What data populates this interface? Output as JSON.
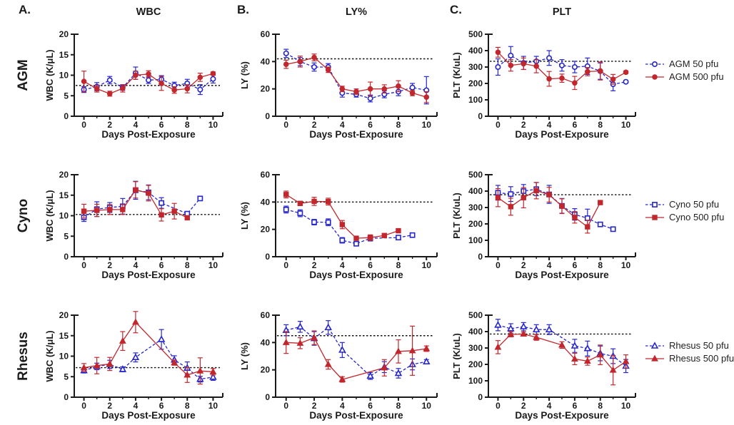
{
  "figure": {
    "xlabel": "Days Post-Exposure",
    "xticks": [
      0,
      2,
      4,
      6,
      8,
      10
    ],
    "xminor": [
      1,
      3,
      5,
      7,
      9
    ],
    "xlim": [
      -0.75,
      10.75
    ],
    "colors": {
      "dose50": "#2525cc",
      "dose500": "#c1272d",
      "baseline": "#111111",
      "text": "#1a1a1a",
      "axis": "#1a1a1a"
    },
    "panels": [
      {
        "letter": "A.",
        "title": "WBC"
      },
      {
        "letter": "B.",
        "title": "LY%"
      },
      {
        "letter": "C.",
        "title": "PLT"
      }
    ],
    "rows": [
      "AGM",
      "Cyno",
      "Rhesus"
    ]
  },
  "chart_data": [
    {
      "id": "agm-wbc",
      "type": "line",
      "row": "AGM",
      "col": "WBC",
      "panel_letter": "A.",
      "title": "WBC",
      "row_label": "AGM",
      "ylabel": "WBC (K/μL)",
      "ylim": [
        0,
        20
      ],
      "yticks": [
        0,
        5,
        10,
        15,
        20
      ],
      "baseline": 7.5,
      "legend_position": "none",
      "series": [
        {
          "name": "AGM 50 pfu",
          "marker": "circle",
          "fill": "open",
          "color": "dose50",
          "dashed": true,
          "x": [
            0,
            1,
            2,
            3,
            4,
            5,
            6,
            7,
            8,
            9,
            10
          ],
          "y": [
            6.5,
            7.2,
            8.8,
            7.0,
            10.5,
            8.8,
            9.0,
            7.5,
            8.0,
            6.5,
            9.1
          ],
          "err": [
            0.7,
            1.0,
            0.9,
            0.7,
            1.5,
            0.8,
            0.9,
            0.8,
            1.0,
            1.2,
            1.0
          ]
        },
        {
          "name": "AGM 500 pfu",
          "marker": "circle",
          "fill": "solid",
          "color": "dose500",
          "dashed": false,
          "x": [
            0,
            1,
            2,
            3,
            4,
            5,
            6,
            7,
            8,
            9,
            10
          ],
          "y": [
            8.5,
            6.7,
            5.5,
            6.8,
            10.0,
            10.3,
            8.0,
            6.4,
            6.7,
            9.5,
            10.4
          ],
          "err": [
            2.5,
            0.8,
            0.6,
            0.9,
            1.0,
            0.8,
            1.7,
            0.8,
            1.0,
            1.0,
            0.4
          ]
        }
      ]
    },
    {
      "id": "agm-ly",
      "type": "line",
      "row": "AGM",
      "col": "LY%",
      "panel_letter": "B.",
      "title": "LY%",
      "ylabel": "LY (%)",
      "ylim": [
        0,
        60
      ],
      "yticks": [
        0,
        20,
        40,
        60
      ],
      "baseline": 42,
      "legend_position": "none",
      "series": [
        {
          "name": "AGM 50 pfu",
          "marker": "circle",
          "fill": "open",
          "color": "dose50",
          "dashed": true,
          "x": [
            0,
            1,
            2,
            3,
            4,
            5,
            6,
            7,
            8,
            9,
            10
          ],
          "y": [
            46,
            40,
            36,
            36,
            17,
            16,
            13,
            16,
            18,
            21,
            19
          ],
          "err": [
            3,
            3,
            3,
            2.5,
            3,
            2,
            2.5,
            2.5,
            3,
            3,
            10
          ]
        },
        {
          "name": "AGM 500 pfu",
          "marker": "circle",
          "fill": "solid",
          "color": "dose500",
          "dashed": false,
          "x": [
            0,
            1,
            2,
            3,
            4,
            5,
            6,
            7,
            8,
            9,
            10
          ],
          "y": [
            38,
            40,
            43,
            34,
            20,
            18,
            20,
            20,
            22,
            17,
            14
          ],
          "err": [
            3,
            4,
            2.5,
            2,
            2,
            2,
            5,
            3,
            4,
            2,
            4
          ]
        }
      ]
    },
    {
      "id": "agm-plt",
      "type": "line",
      "row": "AGM",
      "col": "PLT",
      "panel_letter": "C.",
      "title": "PLT",
      "ylabel": "PLT (K/uL)",
      "ylim": [
        0,
        500
      ],
      "yticks": [
        0,
        100,
        200,
        300,
        400,
        500
      ],
      "baseline": 335,
      "legend_position": "right",
      "series": [
        {
          "name": "AGM 50 pfu",
          "marker": "circle",
          "fill": "open",
          "color": "dose50",
          "dashed": true,
          "x": [
            0,
            1,
            2,
            3,
            4,
            5,
            6,
            7,
            8,
            9,
            10
          ],
          "y": [
            300,
            370,
            325,
            335,
            355,
            310,
            300,
            305,
            275,
            195,
            210
          ],
          "err": [
            50,
            55,
            40,
            30,
            45,
            35,
            35,
            50,
            50,
            40,
            8
          ]
        },
        {
          "name": "AGM 500 pfu",
          "marker": "circle",
          "fill": "solid",
          "color": "dose500",
          "dashed": false,
          "x": [
            0,
            1,
            2,
            3,
            4,
            5,
            6,
            7,
            8,
            9,
            10
          ],
          "y": [
            390,
            310,
            320,
            305,
            228,
            232,
            203,
            272,
            276,
            225,
            268
          ],
          "err": [
            30,
            35,
            35,
            40,
            45,
            25,
            40,
            25,
            55,
            30,
            8
          ]
        }
      ]
    },
    {
      "id": "cyno-wbc",
      "type": "line",
      "row": "Cyno",
      "col": "WBC",
      "row_label": "Cyno",
      "ylabel": "WBC (K/μL)",
      "ylim": [
        0,
        20
      ],
      "yticks": [
        0,
        5,
        10,
        15,
        20
      ],
      "baseline": 10.3,
      "legend_position": "none",
      "series": [
        {
          "name": "Cyno 50 pfu",
          "marker": "square",
          "fill": "open",
          "color": "dose50",
          "dashed": true,
          "x": [
            0,
            1,
            2,
            3,
            4,
            5,
            6,
            8,
            9
          ],
          "y": [
            9.6,
            11.6,
            12.0,
            12.3,
            16.2,
            15.7,
            13.1,
            10.5,
            14.2
          ],
          "err": [
            1.0,
            1.8,
            1.2,
            1.9,
            2.2,
            1.8,
            1.3,
            0.4,
            0.3
          ]
        },
        {
          "name": "Cyno 500 pfu",
          "marker": "square",
          "fill": "solid",
          "color": "dose500",
          "dashed": false,
          "x": [
            0,
            1,
            2,
            3,
            4,
            5,
            6,
            7,
            8
          ],
          "y": [
            11.1,
            11.3,
            11.5,
            11.5,
            16.3,
            15.5,
            10.2,
            11.1,
            9.5
          ],
          "err": [
            1.7,
            1.5,
            1.2,
            1.2,
            2.0,
            1.9,
            1.5,
            1.9,
            0.3
          ]
        }
      ]
    },
    {
      "id": "cyno-ly",
      "type": "line",
      "row": "Cyno",
      "col": "LY%",
      "ylabel": "LY (%)",
      "ylim": [
        0,
        60
      ],
      "yticks": [
        0,
        20,
        40,
        60
      ],
      "baseline": 40,
      "legend_position": "none",
      "series": [
        {
          "name": "Cyno 50 pfu",
          "marker": "square",
          "fill": "open",
          "color": "dose50",
          "dashed": true,
          "x": [
            0,
            1,
            2,
            3,
            4,
            5,
            6,
            8,
            9
          ],
          "y": [
            34.5,
            31.8,
            25.3,
            25.2,
            12.0,
            9.5,
            13.5,
            14.0,
            15.8
          ],
          "err": [
            2.5,
            2.5,
            2.0,
            2.5,
            2.0,
            1.5,
            2.0,
            1.0,
            0.8
          ]
        },
        {
          "name": "Cyno 500 pfu",
          "marker": "square",
          "fill": "solid",
          "color": "dose500",
          "dashed": false,
          "x": [
            0,
            1,
            2,
            3,
            4,
            5,
            6,
            7,
            8
          ],
          "y": [
            45.5,
            39.0,
            40.5,
            40.3,
            23.5,
            13.5,
            14.0,
            15.5,
            19.0
          ],
          "err": [
            2.5,
            1.5,
            3.0,
            2.5,
            3.0,
            1.5,
            2.0,
            1.0,
            0.8
          ]
        }
      ]
    },
    {
      "id": "cyno-plt",
      "type": "line",
      "row": "Cyno",
      "col": "PLT",
      "ylabel": "PLT (K/uL)",
      "ylim": [
        0,
        500
      ],
      "yticks": [
        0,
        100,
        200,
        300,
        400,
        500
      ],
      "baseline": 378,
      "legend_position": "right",
      "series": [
        {
          "name": "Cyno 50 pfu",
          "marker": "square",
          "fill": "open",
          "color": "dose50",
          "dashed": true,
          "x": [
            0,
            1,
            2,
            3,
            4,
            5,
            6,
            7,
            8,
            9
          ],
          "y": [
            390,
            382,
            400,
            412,
            380,
            310,
            258,
            235,
            197,
            168
          ],
          "err": [
            45,
            45,
            40,
            40,
            55,
            45,
            35,
            55,
            10,
            12
          ]
        },
        {
          "name": "Cyno 500 pfu",
          "marker": "square",
          "fill": "solid",
          "color": "dose500",
          "dashed": false,
          "x": [
            0,
            1,
            2,
            3,
            4,
            5,
            6,
            7,
            8
          ],
          "y": [
            360,
            305,
            360,
            403,
            378,
            308,
            240,
            182,
            330
          ],
          "err": [
            55,
            52,
            62,
            50,
            45,
            45,
            35,
            38,
            8
          ]
        }
      ]
    },
    {
      "id": "rhesus-wbc",
      "type": "line",
      "row": "Rhesus",
      "col": "WBC",
      "row_label": "Rhesus",
      "ylabel": "WBC (K/μL)",
      "ylim": [
        0,
        20
      ],
      "yticks": [
        0,
        5,
        10,
        15,
        20
      ],
      "baseline": 7.2,
      "legend_position": "none",
      "series": [
        {
          "name": "Rhesus 50 pfu",
          "marker": "triangle",
          "fill": "open",
          "color": "dose50",
          "dashed": true,
          "x": [
            0,
            1,
            2,
            3,
            4,
            6,
            7,
            8,
            9,
            10
          ],
          "y": [
            6.5,
            7.5,
            8.0,
            6.8,
            9.7,
            14.1,
            9.1,
            7.1,
            4.4,
            4.9
          ],
          "err": [
            0.6,
            0.8,
            1.0,
            0.6,
            1.1,
            2.4,
            1.0,
            1.5,
            0.7,
            0.8
          ]
        },
        {
          "name": "Rhesus 500 pfu",
          "marker": "triangle",
          "fill": "solid",
          "color": "dose500",
          "dashed": false,
          "x": [
            0,
            1,
            2,
            3,
            4,
            7,
            8,
            9,
            10
          ],
          "y": [
            7.2,
            7.7,
            8.1,
            13.7,
            18.3,
            8.4,
            5.4,
            6.4,
            6.2
          ],
          "err": [
            1.0,
            2.0,
            1.6,
            2.3,
            2.6,
            0.6,
            1.8,
            3.2,
            0.8
          ]
        }
      ]
    },
    {
      "id": "rhesus-ly",
      "type": "line",
      "row": "Rhesus",
      "col": "LY%",
      "ylabel": "LY (%)",
      "ylim": [
        0,
        60
      ],
      "yticks": [
        0,
        20,
        40,
        60
      ],
      "baseline": 45,
      "legend_position": "none",
      "series": [
        {
          "name": "Rhesus 50 pfu",
          "marker": "triangle",
          "fill": "open",
          "color": "dose50",
          "dashed": true,
          "x": [
            0,
            1,
            2,
            3,
            4,
            6,
            7,
            8,
            9,
            10
          ],
          "y": [
            49,
            51.5,
            43,
            51,
            34.5,
            15.5,
            22,
            17.5,
            24,
            26
          ],
          "err": [
            4,
            4,
            5,
            5,
            5.5,
            2.5,
            4,
            3.5,
            4,
            1.5
          ]
        },
        {
          "name": "Rhesus 500 pfu",
          "marker": "triangle",
          "fill": "solid",
          "color": "dose500",
          "dashed": false,
          "x": [
            0,
            1,
            2,
            3,
            4,
            7,
            8,
            9,
            10
          ],
          "y": [
            40,
            39.5,
            43.5,
            24,
            13,
            21.5,
            33.5,
            34,
            35.5
          ],
          "err": [
            8,
            4,
            5,
            3.5,
            2,
            6,
            8.5,
            18,
            2
          ]
        }
      ]
    },
    {
      "id": "rhesus-plt",
      "type": "line",
      "row": "Rhesus",
      "col": "PLT",
      "ylabel": "PLT (K/uL)",
      "ylim": [
        0,
        500
      ],
      "yticks": [
        0,
        100,
        200,
        300,
        400,
        500
      ],
      "baseline": 385,
      "legend_position": "right",
      "series": [
        {
          "name": "Rhesus 50 pfu",
          "marker": "triangle",
          "fill": "open",
          "color": "dose50",
          "dashed": true,
          "x": [
            0,
            1,
            2,
            3,
            4,
            6,
            7,
            8,
            9,
            10
          ],
          "y": [
            440,
            418,
            430,
            412,
            412,
            313,
            297,
            267,
            250,
            190
          ],
          "err": [
            35,
            30,
            25,
            30,
            30,
            40,
            45,
            45,
            45,
            40
          ]
        },
        {
          "name": "Rhesus 500 pfu",
          "marker": "triangle",
          "fill": "solid",
          "color": "dose500",
          "dashed": false,
          "x": [
            0,
            1,
            2,
            3,
            5,
            6,
            7,
            8,
            9,
            10
          ],
          "y": [
            305,
            383,
            385,
            365,
            318,
            233,
            220,
            258,
            165,
            218
          ],
          "err": [
            40,
            15,
            12,
            18,
            20,
            35,
            25,
            60,
            90,
            40
          ]
        }
      ]
    }
  ]
}
